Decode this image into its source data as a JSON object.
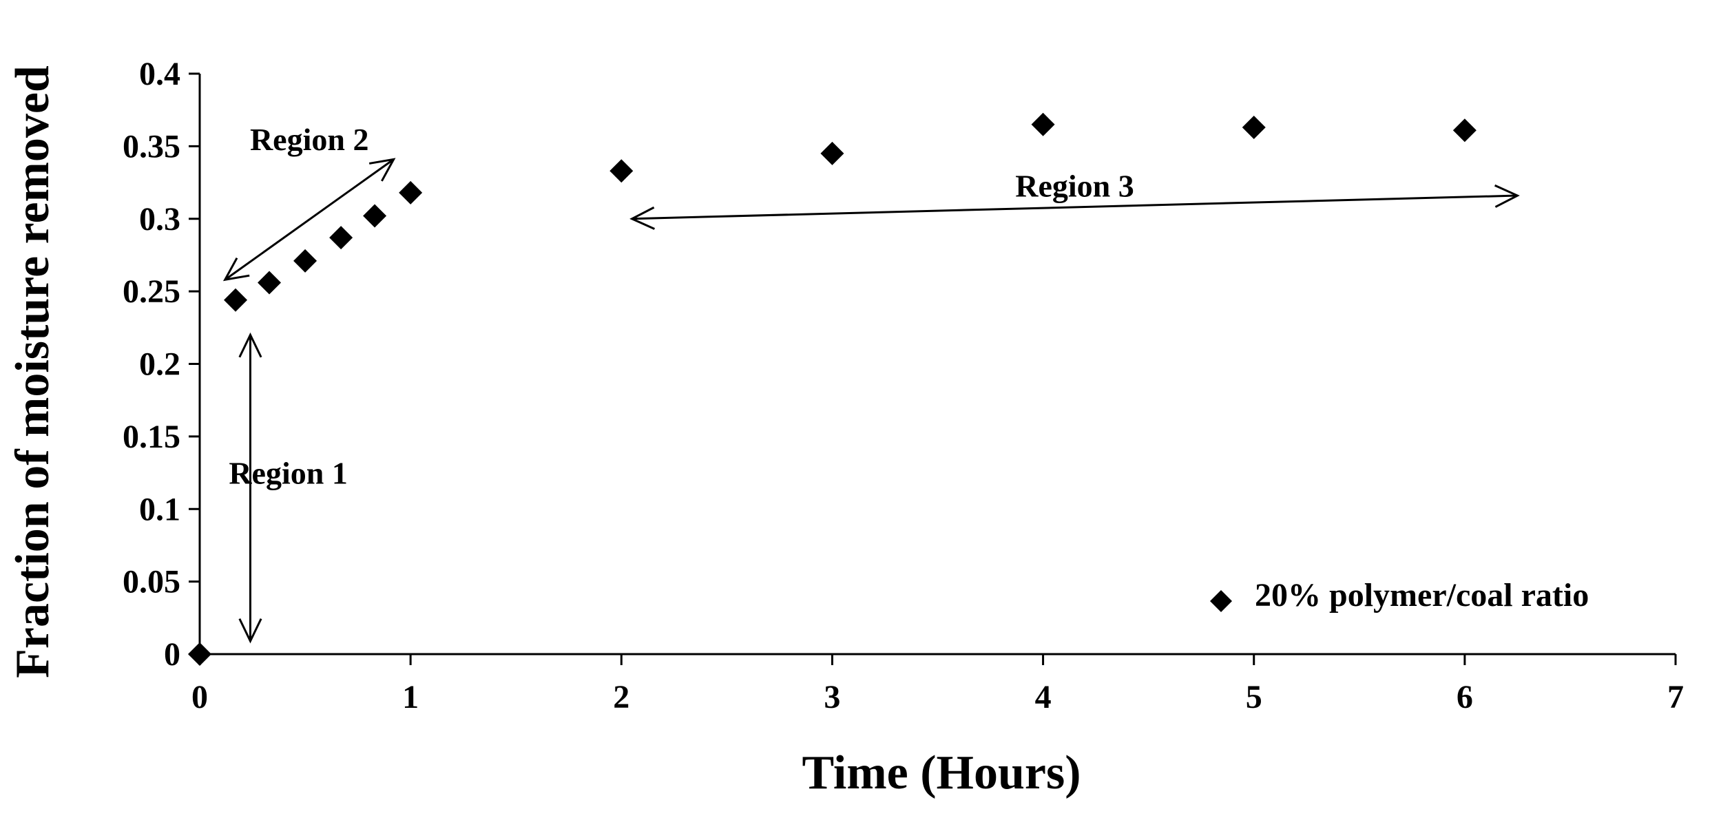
{
  "chart_data": {
    "type": "scatter",
    "xlabel": "Time (Hours)",
    "ylabel": "Fraction of moisture removed",
    "xlim": [
      0,
      7
    ],
    "ylim": [
      0,
      0.4
    ],
    "xticks": [
      0,
      1,
      2,
      3,
      4,
      5,
      6,
      7
    ],
    "yticks": [
      0,
      0.05,
      0.1,
      0.15,
      0.2,
      0.25,
      0.3,
      0.35,
      0.4
    ],
    "xtick_labels": [
      "0",
      "1",
      "2",
      "3",
      "4",
      "5",
      "6",
      "7"
    ],
    "ytick_labels": [
      "0",
      "0.05",
      "0.1",
      "0.15",
      "0.2",
      "0.25",
      "0.3",
      "0.35",
      "0.4"
    ],
    "grid": false,
    "legend_position": "bottom-right",
    "series": [
      {
        "name": "20% polymer/coal ratio",
        "marker": "diamond",
        "color": "#000000",
        "x": [
          0,
          0.17,
          0.33,
          0.5,
          0.67,
          0.83,
          1,
          2,
          3,
          4,
          5,
          6
        ],
        "y": [
          0,
          0.244,
          0.256,
          0.271,
          0.287,
          0.302,
          0.318,
          0.333,
          0.345,
          0.365,
          0.363,
          0.361
        ]
      }
    ],
    "annotations": [
      {
        "text": "Region 1",
        "text_at": [
          0.42,
          0.125
        ],
        "arrow": {
          "from": [
            0.24,
            0.22
          ],
          "to": [
            0.24,
            0.009
          ],
          "double": true
        }
      },
      {
        "text": "Region 2",
        "text_at": [
          0.52,
          0.355
        ],
        "arrow": {
          "from": [
            0.12,
            0.258
          ],
          "to": [
            0.92,
            0.341
          ],
          "double": true
        }
      },
      {
        "text": "Region 3",
        "text_at": [
          4.15,
          0.323
        ],
        "arrow": {
          "from": [
            2.05,
            0.3
          ],
          "to": [
            6.25,
            0.316
          ],
          "double": true
        }
      }
    ]
  }
}
